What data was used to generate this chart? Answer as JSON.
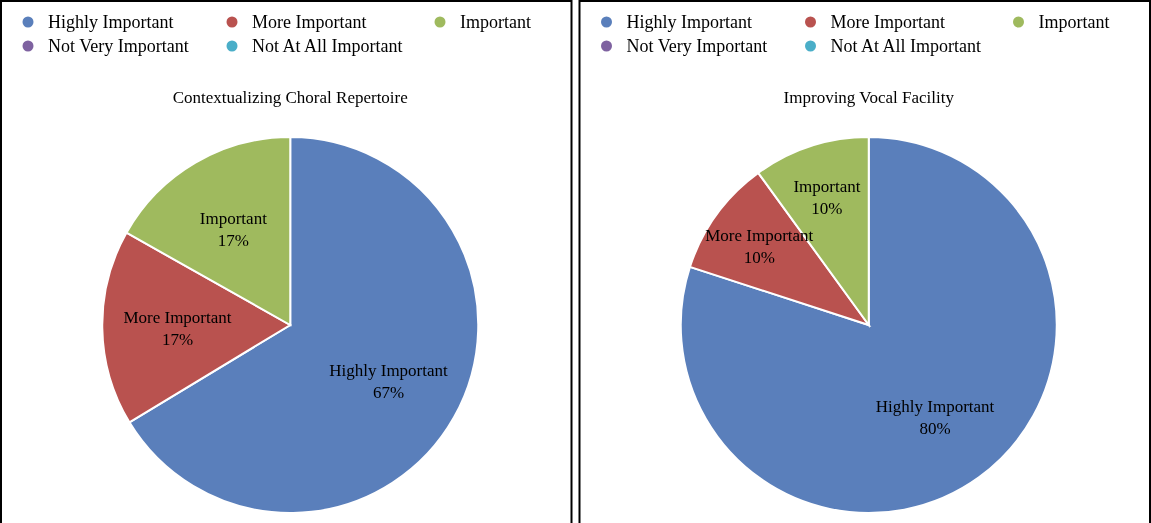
{
  "chart_data": [
    {
      "type": "pie",
      "title": "Contextualizing Choral Repertoire",
      "categories": [
        "Highly Important",
        "More Important",
        "Important",
        "Not Very Important",
        "Not At All Important"
      ],
      "values": [
        67,
        17,
        17,
        0,
        0
      ],
      "colors": [
        "#5a7fbb",
        "#b9524f",
        "#9fba5e",
        "#7e62a0",
        "#4aaec8"
      ],
      "value_labels": [
        "67%",
        "17%",
        "17%",
        null,
        null
      ],
      "legend": "top"
    },
    {
      "type": "pie",
      "title": "Improving Vocal Facility",
      "categories": [
        "Highly Important",
        "More Important",
        "Important",
        "Not Very Important",
        "Not At All Important"
      ],
      "values": [
        80,
        10,
        10,
        0,
        0
      ],
      "colors": [
        "#5a7fbb",
        "#b9524f",
        "#9fba5e",
        "#7e62a0",
        "#4aaec8"
      ],
      "value_labels": [
        "80%",
        "10%",
        "10%",
        null,
        null
      ],
      "legend": "top"
    }
  ]
}
